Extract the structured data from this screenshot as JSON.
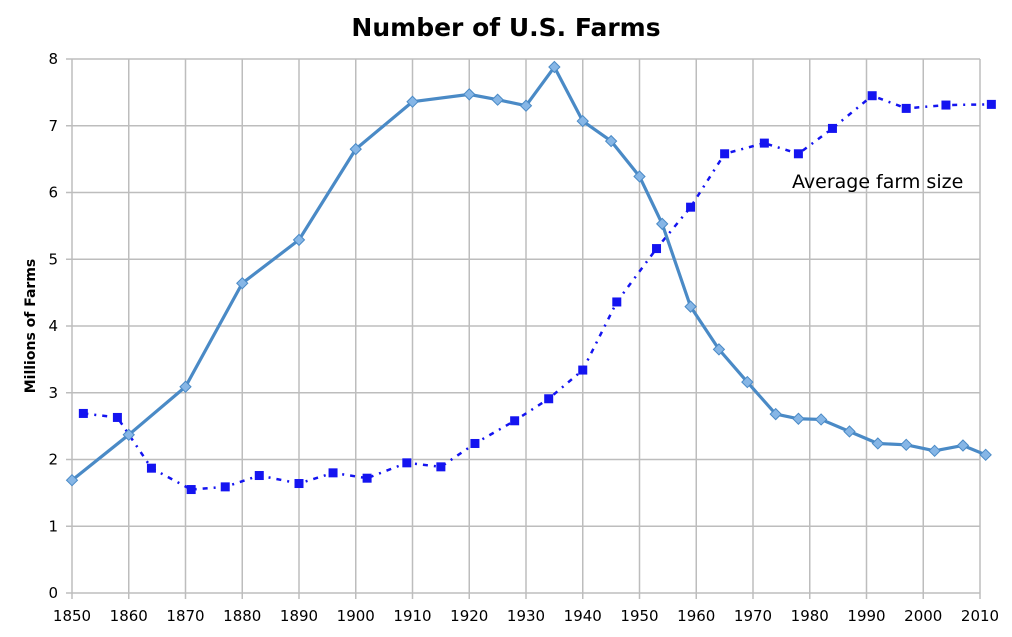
{
  "chart_data": {
    "type": "line",
    "title": "Number of U.S. Farms",
    "xlabel": "",
    "ylabel": "Millions of Farms",
    "xlim": [
      1850,
      2010
    ],
    "ylim": [
      0,
      8
    ],
    "x_ticks": [
      "1850",
      "1860",
      "1870",
      "1880",
      "1890",
      "1900",
      "1910",
      "1920",
      "1930",
      "1940",
      "1950",
      "1960",
      "1970",
      "1980",
      "1990",
      "2000",
      "2010"
    ],
    "y_ticks": [
      "0",
      "1",
      "2",
      "3",
      "4",
      "5",
      "6",
      "7",
      "8"
    ],
    "grid": true,
    "colors": {
      "farms": "#4a8ac6",
      "farms_marker": "#86b6e6",
      "farm_size": "#1414f0",
      "grid": "#bdbdbd"
    },
    "annotation": "Average farm size",
    "series": [
      {
        "style": "solid line with diamond markers",
        "x": [
          1850,
          1860,
          1870,
          1880,
          1890,
          1900,
          1910,
          1920,
          1925,
          1930,
          1935,
          1940,
          1945,
          1950,
          1954,
          1959,
          1964,
          1969,
          1974,
          1978,
          1982,
          1987,
          1992,
          1997,
          2002,
          2007,
          2011
        ],
        "y": [
          1.69,
          2.37,
          3.09,
          4.64,
          5.29,
          6.65,
          7.36,
          7.47,
          7.39,
          7.3,
          7.88,
          7.07,
          6.77,
          6.24,
          5.53,
          4.29,
          3.65,
          3.16,
          2.68,
          2.61,
          2.6,
          2.42,
          2.24,
          2.22,
          2.13,
          2.21,
          2.07
        ]
      },
      {
        "name": "Average farm size",
        "style": "dash-dot line with square markers",
        "x": [
          1852,
          1858,
          1864,
          1871,
          1877,
          1883,
          1890,
          1896,
          1902,
          1909,
          1915,
          1921,
          1928,
          1934,
          1940,
          1946,
          1953,
          1959,
          1965,
          1972,
          1978,
          1984,
          1991,
          1997,
          2004,
          2012
        ],
        "y": [
          2.69,
          2.63,
          1.87,
          1.55,
          1.59,
          1.76,
          1.64,
          1.8,
          1.72,
          1.95,
          1.89,
          2.24,
          2.58,
          2.91,
          3.34,
          4.36,
          5.16,
          5.78,
          6.58,
          6.74,
          6.58,
          6.96,
          7.45,
          7.26,
          7.31,
          7.32
        ]
      }
    ]
  }
}
